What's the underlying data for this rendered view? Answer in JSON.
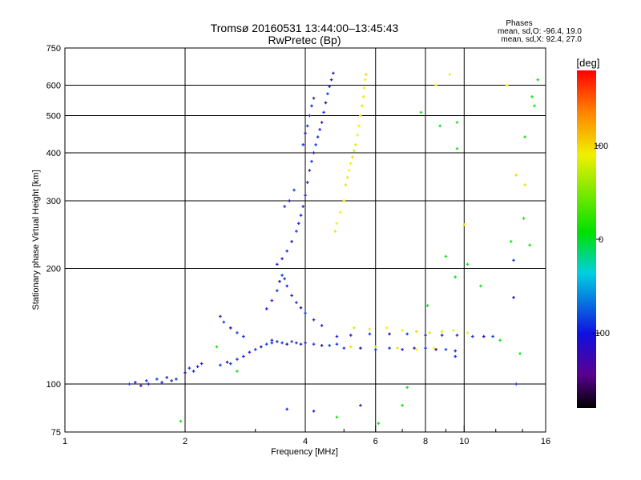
{
  "chart_data": {
    "type": "scatter",
    "title": "Tromsø 20160531 13:44:00–13:45:43",
    "subtitle": "RwPretec (Bp)",
    "xlabel": "Frequency [MHz]",
    "ylabel": "Stationary phase Virtual Height [km]",
    "x_scale": "log",
    "y_scale": "log",
    "xlim": [
      1,
      16
    ],
    "ylim": [
      75,
      750
    ],
    "x_ticks": [
      1,
      2,
      4,
      6,
      8,
      10,
      16
    ],
    "x_minor_ticks": [
      3,
      5,
      7,
      9,
      12,
      14
    ],
    "y_ticks": [
      75,
      100,
      200,
      300,
      400,
      500,
      600,
      750
    ],
    "grid": true,
    "phases": {
      "title": "Phases",
      "line_o": "mean, sd,O: -96.4, 19.0",
      "line_x": "mean, sd,X:  92.4, 27.0"
    },
    "colorbar": {
      "label": "[deg]",
      "range": [
        -180,
        180
      ],
      "ticks": [
        100,
        0,
        -100
      ],
      "colormap": "rainbow"
    },
    "series": [
      {
        "color_group": "O-mode (blue/purple)",
        "points": [
          [
            1.45,
            100
          ],
          [
            1.5,
            101
          ],
          [
            1.55,
            99
          ],
          [
            1.6,
            102
          ],
          [
            1.62,
            100
          ],
          [
            1.7,
            103
          ],
          [
            1.75,
            101
          ],
          [
            1.8,
            104
          ],
          [
            1.85,
            102
          ],
          [
            1.9,
            103
          ],
          [
            2.0,
            107
          ],
          [
            2.05,
            110
          ],
          [
            2.1,
            108
          ],
          [
            2.15,
            111
          ],
          [
            2.2,
            113
          ],
          [
            2.45,
            112
          ],
          [
            2.55,
            114
          ],
          [
            2.6,
            113
          ],
          [
            2.7,
            116
          ],
          [
            2.8,
            118
          ],
          [
            2.9,
            121
          ],
          [
            3.0,
            123
          ],
          [
            3.1,
            125
          ],
          [
            3.2,
            127
          ],
          [
            3.3,
            128
          ],
          [
            3.3,
            130
          ],
          [
            3.4,
            129
          ],
          [
            3.5,
            128
          ],
          [
            3.6,
            127
          ],
          [
            3.7,
            129
          ],
          [
            3.8,
            128
          ],
          [
            3.9,
            127
          ],
          [
            4.0,
            128
          ],
          [
            4.2,
            127
          ],
          [
            4.4,
            126
          ],
          [
            4.6,
            126
          ],
          [
            4.8,
            127
          ],
          [
            3.2,
            157
          ],
          [
            3.3,
            165
          ],
          [
            3.4,
            175
          ],
          [
            3.45,
            185
          ],
          [
            3.5,
            192
          ],
          [
            3.55,
            188
          ],
          [
            3.6,
            180
          ],
          [
            3.7,
            170
          ],
          [
            3.8,
            163
          ],
          [
            3.9,
            158
          ],
          [
            4.0,
            153
          ],
          [
            4.2,
            147
          ],
          [
            4.4,
            142
          ],
          [
            2.45,
            150
          ],
          [
            2.5,
            145
          ],
          [
            2.6,
            140
          ],
          [
            2.7,
            136
          ],
          [
            2.8,
            133
          ],
          [
            3.4,
            205
          ],
          [
            3.5,
            212
          ],
          [
            3.6,
            222
          ],
          [
            3.7,
            235
          ],
          [
            3.8,
            250
          ],
          [
            3.85,
            262
          ],
          [
            3.9,
            275
          ],
          [
            3.95,
            290
          ],
          [
            3.55,
            290
          ],
          [
            3.65,
            300
          ],
          [
            3.75,
            320
          ],
          [
            4.0,
            310
          ],
          [
            4.05,
            335
          ],
          [
            4.1,
            360
          ],
          [
            4.15,
            380
          ],
          [
            4.2,
            400
          ],
          [
            4.25,
            420
          ],
          [
            4.3,
            440
          ],
          [
            4.35,
            460
          ],
          [
            4.4,
            480
          ],
          [
            4.45,
            510
          ],
          [
            4.5,
            540
          ],
          [
            4.55,
            570
          ],
          [
            4.6,
            595
          ],
          [
            4.65,
            620
          ],
          [
            4.7,
            645
          ],
          [
            3.95,
            420
          ],
          [
            4.0,
            450
          ],
          [
            4.05,
            470
          ],
          [
            4.1,
            500
          ],
          [
            4.15,
            530
          ],
          [
            4.2,
            555
          ],
          [
            5.0,
            124
          ],
          [
            5.5,
            124
          ],
          [
            6.0,
            123
          ],
          [
            6.5,
            124
          ],
          [
            7.0,
            123
          ],
          [
            7.5,
            124
          ],
          [
            8.0,
            124
          ],
          [
            8.5,
            123
          ],
          [
            9.0,
            123
          ],
          [
            9.5,
            122
          ],
          [
            4.8,
            133
          ],
          [
            5.2,
            134
          ],
          [
            5.8,
            135
          ],
          [
            6.5,
            135
          ],
          [
            7.2,
            135
          ],
          [
            8.0,
            134
          ],
          [
            8.8,
            134
          ],
          [
            9.6,
            134
          ],
          [
            10.5,
            133
          ],
          [
            11.2,
            133
          ],
          [
            11.8,
            133
          ],
          [
            3.6,
            86
          ],
          [
            4.2,
            85
          ],
          [
            5.5,
            88
          ],
          [
            9.5,
            118
          ],
          [
            13.3,
            168
          ],
          [
            13.3,
            210
          ],
          [
            13.5,
            100
          ]
        ]
      },
      {
        "color_group": "X-mode (yellow)",
        "points": [
          [
            4.75,
            250
          ],
          [
            4.8,
            262
          ],
          [
            4.9,
            280
          ],
          [
            5.0,
            300
          ],
          [
            5.05,
            330
          ],
          [
            5.1,
            345
          ],
          [
            5.15,
            360
          ],
          [
            5.2,
            375
          ],
          [
            5.25,
            390
          ],
          [
            5.3,
            405
          ],
          [
            5.35,
            420
          ],
          [
            5.4,
            445
          ],
          [
            5.45,
            470
          ],
          [
            5.5,
            500
          ],
          [
            5.55,
            530
          ],
          [
            5.6,
            560
          ],
          [
            5.62,
            590
          ],
          [
            5.65,
            620
          ],
          [
            5.68,
            640
          ],
          [
            5.3,
            140
          ],
          [
            5.8,
            139
          ],
          [
            6.4,
            140
          ],
          [
            7.0,
            138
          ],
          [
            7.6,
            137
          ],
          [
            8.2,
            136
          ],
          [
            8.8,
            137
          ],
          [
            9.4,
            138
          ],
          [
            10.2,
            136
          ],
          [
            5.2,
            125
          ],
          [
            6.0,
            125
          ],
          [
            6.8,
            124
          ],
          [
            7.6,
            123
          ],
          [
            8.4,
            124
          ],
          [
            13.5,
            350
          ],
          [
            14.2,
            330
          ],
          [
            8.5,
            600
          ],
          [
            9.2,
            640
          ],
          [
            12.8,
            600
          ],
          [
            10.0,
            260
          ]
        ]
      },
      {
        "color_group": "scattered (mixed)",
        "points": [
          [
            1.95,
            80
          ],
          [
            2.7,
            108
          ],
          [
            2.4,
            125
          ],
          [
            4.8,
            82
          ],
          [
            6.1,
            79
          ],
          [
            7.0,
            88
          ],
          [
            7.2,
            98
          ],
          [
            8.1,
            160
          ],
          [
            9.0,
            215
          ],
          [
            9.5,
            190
          ],
          [
            10.2,
            205
          ],
          [
            11.0,
            180
          ],
          [
            13.1,
            235
          ],
          [
            14.1,
            270
          ],
          [
            14.2,
            440
          ],
          [
            14.6,
            230
          ],
          [
            14.8,
            560
          ],
          [
            15.0,
            530
          ],
          [
            15.3,
            620
          ],
          [
            7.8,
            510
          ],
          [
            8.7,
            470
          ],
          [
            9.6,
            480
          ],
          [
            9.6,
            410
          ],
          [
            12.3,
            130
          ],
          [
            13.8,
            120
          ]
        ]
      }
    ]
  }
}
